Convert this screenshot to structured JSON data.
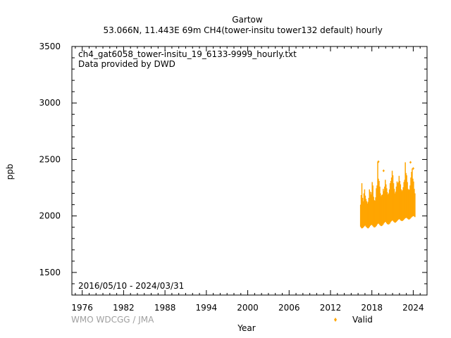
{
  "header": {
    "station": "Gartow",
    "location": "53.066N, 11.443E 69m",
    "dataset": "CH4(tower-insitu tower132 default) hourly"
  },
  "annotations": {
    "filename": "ch4_gat6058_tower-insitu_19_6133-9999_hourly.txt",
    "provider": "Data provided by DWD",
    "period": "2016/05/10 - 2024/03/31",
    "credit": "WMO WDCGG / JMA"
  },
  "legend": {
    "label": "Valid",
    "position": "bottom-right, below plot"
  },
  "colors": {
    "valid": "#ffa500",
    "frame": "#000000",
    "credit": "#a0a0a0"
  },
  "chart_data": {
    "type": "scatter",
    "title": "Gartow",
    "subtitle": "53.066N, 11.443E 69m    CH4(tower-insitu tower132 default) hourly",
    "xlabel": "Year",
    "ylabel": "ppb",
    "xlim": [
      1974.5,
      2026
    ],
    "ylim": [
      1300,
      3500
    ],
    "xticks": [
      1976,
      1982,
      1988,
      1994,
      2000,
      2006,
      2012,
      2018,
      2024
    ],
    "yticks": [
      1500,
      2000,
      2500,
      3000,
      3500
    ],
    "grid": false,
    "legend": "bottom-right",
    "series": [
      {
        "name": "Valid",
        "color": "#ffa500",
        "marker": "diamond",
        "x": [
          2016.36,
          2016.45,
          2016.55,
          2016.65,
          2016.75,
          2016.85,
          2016.95,
          2017.05,
          2017.15,
          2017.25,
          2017.35,
          2017.45,
          2017.55,
          2017.65,
          2017.75,
          2017.85,
          2017.95,
          2018.05,
          2018.15,
          2018.25,
          2018.35,
          2018.45,
          2018.55,
          2018.65,
          2018.75,
          2018.85,
          2018.95,
          2019.05,
          2019.15,
          2019.25,
          2019.35,
          2019.45,
          2019.55,
          2019.65,
          2019.75,
          2019.85,
          2019.95,
          2020.05,
          2020.15,
          2020.25,
          2020.35,
          2020.45,
          2020.55,
          2020.65,
          2020.75,
          2020.85,
          2020.95,
          2021.05,
          2021.15,
          2021.25,
          2021.35,
          2021.45,
          2021.55,
          2021.65,
          2021.75,
          2021.85,
          2021.95,
          2022.05,
          2022.15,
          2022.25,
          2022.35,
          2022.45,
          2022.55,
          2022.65,
          2022.75,
          2022.85,
          2022.95,
          2023.05,
          2023.15,
          2023.25,
          2023.35,
          2023.45,
          2023.55,
          2023.65,
          2023.75,
          2023.85,
          2023.95,
          2024.05,
          2024.15,
          2024.25
        ],
        "ymin": [
          1905,
          1895,
          1890,
          1892,
          1898,
          1905,
          1912,
          1915,
          1905,
          1900,
          1893,
          1890,
          1895,
          1902,
          1912,
          1918,
          1922,
          1918,
          1910,
          1903,
          1898,
          1900,
          1905,
          1912,
          1922,
          1930,
          1935,
          1928,
          1920,
          1915,
          1910,
          1912,
          1918,
          1925,
          1935,
          1942,
          1948,
          1945,
          1935,
          1928,
          1925,
          1925,
          1930,
          1938,
          1948,
          1955,
          1960,
          1958,
          1950,
          1945,
          1940,
          1942,
          1948,
          1955,
          1962,
          1968,
          1972,
          1970,
          1962,
          1958,
          1955,
          1957,
          1962,
          1968,
          1975,
          1980,
          1985,
          1982,
          1978,
          1972,
          1968,
          1970,
          1975,
          1982,
          1988,
          1993,
          1998,
          2000,
          1995,
          1990
        ],
        "ymax": [
          2100,
          2185,
          2290,
          2160,
          2130,
          2200,
          2235,
          2180,
          2150,
          2130,
          2110,
          2125,
          2160,
          2235,
          2215,
          2190,
          2210,
          2300,
          2270,
          2170,
          2140,
          2135,
          2165,
          2245,
          2270,
          2480,
          2330,
          2310,
          2260,
          2200,
          2175,
          2185,
          2190,
          2240,
          2220,
          2260,
          2320,
          2280,
          2245,
          2210,
          2190,
          2200,
          2235,
          2290,
          2310,
          2340,
          2400,
          2360,
          2290,
          2240,
          2200,
          2215,
          2260,
          2305,
          2290,
          2300,
          2355,
          2310,
          2280,
          2235,
          2220,
          2230,
          2255,
          2300,
          2320,
          2475,
          2380,
          2360,
          2300,
          2240,
          2230,
          2235,
          2270,
          2340,
          2390,
          2420,
          2330,
          2305,
          2240,
          2200
        ],
        "spikes": [
          [
            2018.95,
            2480
          ],
          [
            2019.7,
            2400
          ],
          [
            2023.6,
            2475
          ],
          [
            2024.0,
            2420
          ]
        ]
      }
    ]
  }
}
